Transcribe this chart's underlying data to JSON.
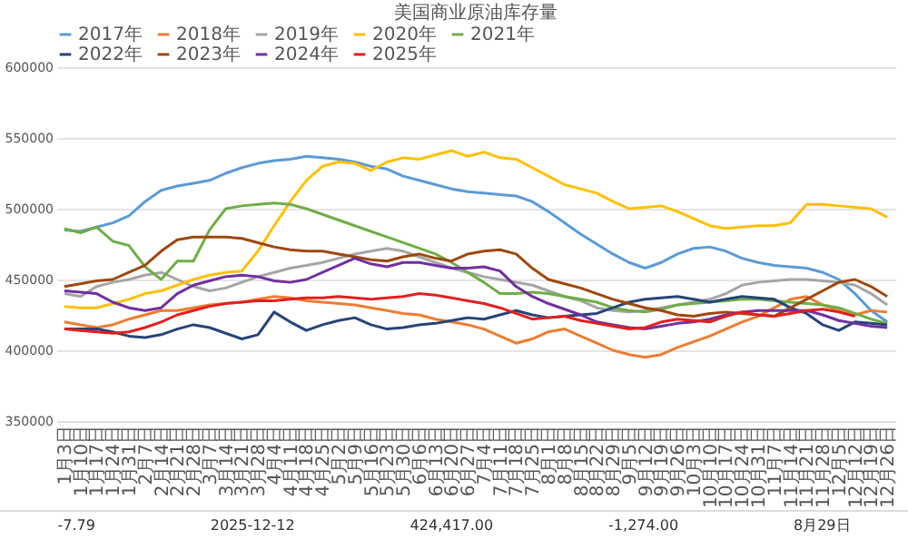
{
  "chart_data": {
    "type": "line",
    "title": "美国商业原油库存量",
    "categories": [
      "1月3日",
      "1月10日",
      "1月17日",
      "1月24日",
      "1月31日",
      "2月7日",
      "2月14日",
      "2月21日",
      "2月28日",
      "3月7日",
      "3月14日",
      "3月21日",
      "3月28日",
      "4月4日",
      "4月11日",
      "4月18日",
      "4月25日",
      "5月2日",
      "5月9日",
      "5月16日",
      "5月23日",
      "5月30日",
      "6月6日",
      "6月13日",
      "6月20日",
      "6月27日",
      "7月4日",
      "7月11日",
      "7月18日",
      "7月25日",
      "8月1日",
      "8月8日",
      "8月15日",
      "8月22日",
      "8月29日",
      "9月5日",
      "9月12日",
      "9月19日",
      "9月26日",
      "10月3日",
      "10月10日",
      "10月17日",
      "10月24日",
      "10月31日",
      "11月7日",
      "11月14日",
      "11月21日",
      "11月28日",
      "12月5日",
      "12月12日",
      "12月19日",
      "12月26日"
    ],
    "series": [
      {
        "name": "2017年",
        "color": "#5b9bd5",
        "values": [
          485000,
          484000,
          487000,
          490000,
          495000,
          505000,
          513000,
          516000,
          518000,
          520000,
          525000,
          529000,
          532000,
          534000,
          535000,
          537000,
          536000,
          535000,
          533000,
          530000,
          528000,
          523000,
          520000,
          517000,
          514000,
          512000,
          511000,
          510000,
          509000,
          505000,
          498000,
          490000,
          482000,
          475000,
          468000,
          462000,
          458000,
          462000,
          468000,
          472000,
          473000,
          470000,
          465000,
          462000,
          460000,
          459000,
          458000,
          455000,
          450000,
          440000,
          428000,
          420000
        ]
      },
      {
        "name": "2018年",
        "color": "#ed7d31",
        "values": [
          420000,
          418000,
          416000,
          418000,
          422000,
          425000,
          428000,
          428000,
          430000,
          432000,
          433000,
          434000,
          436000,
          438000,
          437000,
          435000,
          434000,
          433000,
          432000,
          430000,
          428000,
          426000,
          425000,
          422000,
          420000,
          418000,
          415000,
          410000,
          405000,
          408000,
          413000,
          415000,
          410000,
          405000,
          400000,
          397000,
          395000,
          397000,
          402000,
          406000,
          410000,
          415000,
          420000,
          424000,
          430000,
          436000,
          438000,
          432000,
          428000,
          425000,
          428000,
          427000
        ]
      },
      {
        "name": "2019年",
        "color": "#a5a5a5",
        "values": [
          440000,
          438000,
          445000,
          448000,
          450000,
          453000,
          455000,
          450000,
          445000,
          442000,
          444000,
          448000,
          452000,
          455000,
          458000,
          460000,
          462000,
          465000,
          468000,
          470000,
          472000,
          470000,
          466000,
          462000,
          458000,
          455000,
          452000,
          450000,
          448000,
          446000,
          442000,
          438000,
          435000,
          430000,
          428000,
          427000,
          428000,
          430000,
          432000,
          434000,
          436000,
          440000,
          446000,
          448000,
          449000,
          450000,
          450000,
          449000,
          448000,
          446000,
          440000,
          432000
        ]
      },
      {
        "name": "2020年",
        "color": "#ffc000",
        "values": [
          431000,
          430000,
          430000,
          433000,
          436000,
          440000,
          442000,
          446000,
          450000,
          453000,
          455000,
          456000,
          470000,
          488000,
          505000,
          520000,
          530000,
          533000,
          532000,
          527000,
          533000,
          536000,
          535000,
          538000,
          541000,
          537000,
          540000,
          536000,
          535000,
          529000,
          523000,
          517000,
          514000,
          511000,
          505000,
          500000,
          501000,
          502000,
          498000,
          493000,
          488000,
          486000,
          487000,
          488000,
          488000,
          490000,
          503000,
          503000,
          502000,
          501000,
          500000,
          494000
        ]
      },
      {
        "name": "2021年",
        "color": "#70ad47",
        "values": [
          486000,
          483000,
          487000,
          477000,
          474000,
          459000,
          450000,
          463000,
          463000,
          485000,
          500000,
          502000,
          503000,
          504000,
          503000,
          500000,
          496000,
          492000,
          488000,
          484000,
          480000,
          476000,
          472000,
          468000,
          462000,
          455000,
          448000,
          440000,
          440000,
          441000,
          440000,
          438000,
          436000,
          434000,
          430000,
          428000,
          427000,
          429000,
          432000,
          433000,
          434000,
          435000,
          436000,
          436000,
          435000,
          434000,
          433000,
          432000,
          430000,
          426000,
          422000,
          419000
        ]
      },
      {
        "name": "2022年",
        "color": "#264478",
        "values": [
          415000,
          415000,
          415000,
          413000,
          410000,
          409000,
          411000,
          415000,
          418000,
          416000,
          412000,
          408000,
          411000,
          427000,
          420000,
          414000,
          418000,
          421000,
          423000,
          418000,
          415000,
          416000,
          418000,
          419000,
          421000,
          423000,
          422000,
          425000,
          428000,
          425000,
          423000,
          424000,
          425000,
          426000,
          430000,
          434000,
          436000,
          437000,
          438000,
          436000,
          434000,
          436000,
          438000,
          437000,
          436000,
          430000,
          426000,
          418000,
          414000,
          420000,
          419000,
          418000
        ]
      },
      {
        "name": "2023年",
        "color": "#9e480e",
        "values": [
          445000,
          447000,
          449000,
          450000,
          455000,
          460000,
          470000,
          478000,
          480000,
          480000,
          480000,
          479000,
          476000,
          473000,
          471000,
          470000,
          470000,
          468000,
          466000,
          464000,
          463000,
          466000,
          468000,
          465000,
          463000,
          468000,
          470000,
          471000,
          468000,
          458000,
          450000,
          447000,
          444000,
          440000,
          436000,
          433000,
          430000,
          428000,
          425000,
          424000,
          426000,
          427000,
          426000,
          425000,
          424000,
          430000,
          436000,
          442000,
          448000,
          450000,
          445000,
          438000
        ]
      },
      {
        "name": "2024年",
        "color": "#7030a0",
        "values": [
          442000,
          441000,
          440000,
          434000,
          430000,
          428000,
          430000,
          440000,
          446000,
          449000,
          452000,
          453000,
          452000,
          449000,
          448000,
          450000,
          455000,
          460000,
          465000,
          461000,
          459000,
          462000,
          462000,
          460000,
          458000,
          458000,
          459000,
          456000,
          445000,
          438000,
          433000,
          429000,
          425000,
          420000,
          418000,
          416000,
          415000,
          417000,
          419000,
          420000,
          422000,
          425000,
          427000,
          428000,
          428000,
          428000,
          428000,
          425000,
          421000,
          419000,
          417000,
          416000
        ]
      },
      {
        "name": "2025年",
        "color": "#e02020",
        "values": [
          415000,
          414000,
          413000,
          412000,
          413000,
          416000,
          420000,
          425000,
          428000,
          431000,
          433000,
          434000,
          435000,
          435000,
          436000,
          437000,
          437000,
          438000,
          437000,
          436000,
          437000,
          438000,
          440000,
          439000,
          437000,
          435000,
          433000,
          430000,
          426000,
          422000,
          423000,
          424000,
          421000,
          419000,
          417000,
          415000,
          416000,
          420000,
          422000,
          421000,
          420000,
          424000,
          427000,
          425000,
          424000,
          426000,
          428000,
          429000,
          427000,
          424000,
          null,
          null
        ]
      }
    ],
    "ylim": [
      350000,
      600000
    ],
    "yticks": [
      350000,
      400000,
      450000,
      500000,
      550000,
      600000
    ],
    "grid": "y",
    "legend": "top",
    "marker": "none",
    "line_style": "solid",
    "annotations": [
      "-7.79",
      "2025-12-12",
      "424,417.00",
      "-1,274.00",
      "8月29日"
    ]
  }
}
